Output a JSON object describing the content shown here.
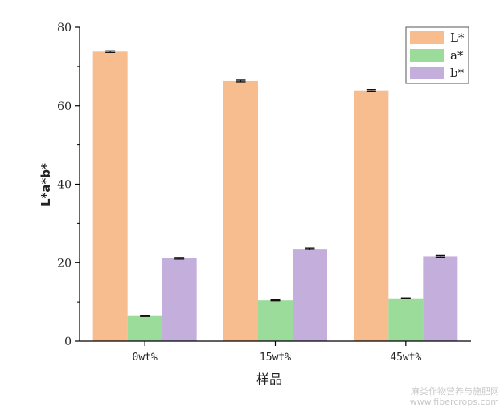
{
  "chart_data": {
    "type": "bar",
    "xlabel": "样品",
    "ylabel": "L*a*b*",
    "categories": [
      "0wt%",
      "15wt%",
      "45wt%"
    ],
    "ylim": [
      0,
      80
    ],
    "yticks": [
      0,
      20,
      40,
      60,
      80
    ],
    "legend_position": "top-right",
    "grid": false,
    "series": [
      {
        "name": "L*",
        "color": "#f7bd8f",
        "values": [
          73.8,
          66.3,
          63.9
        ],
        "errors": [
          0.2,
          0.2,
          0.2
        ]
      },
      {
        "name": "a*",
        "color": "#9bdc9a",
        "values": [
          6.4,
          10.4,
          10.9
        ],
        "errors": [
          0.1,
          0.1,
          0.1
        ]
      },
      {
        "name": "b*",
        "color": "#c4afdc",
        "values": [
          21.1,
          23.5,
          21.6
        ],
        "errors": [
          0.2,
          0.2,
          0.2
        ]
      }
    ]
  },
  "watermark": {
    "line1": "麻类作物营养与施肥网",
    "line2": "www.fibercrops.com"
  }
}
